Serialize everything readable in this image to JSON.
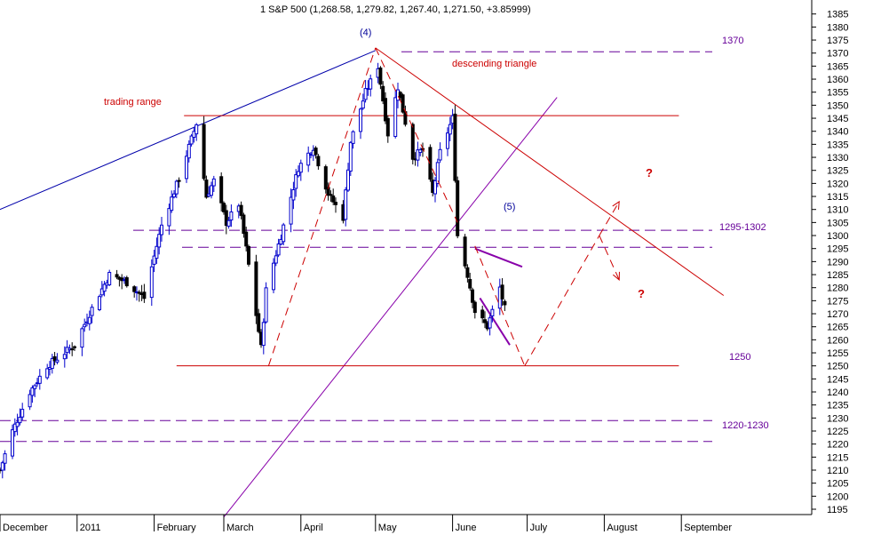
{
  "chart_data": {
    "type": "candlestick",
    "title": "1 S&P 500 (1,268.58, 1,279.82, 1,267.40, 1,271.50, +3.85999)",
    "xlabel": "",
    "ylabel": "",
    "ylim": [
      1191,
      1390
    ],
    "y_ticks": [
      1195,
      1200,
      1205,
      1210,
      1215,
      1220,
      1225,
      1230,
      1235,
      1240,
      1245,
      1250,
      1255,
      1260,
      1265,
      1270,
      1275,
      1280,
      1285,
      1290,
      1295,
      1300,
      1305,
      1310,
      1315,
      1320,
      1325,
      1330,
      1335,
      1340,
      1345,
      1350,
      1355,
      1360,
      1365,
      1370,
      1375,
      1380,
      1385
    ],
    "y_axis_side": "right",
    "grid": false,
    "legend": "none",
    "colors": {
      "up_candle": "#0000cc",
      "down_candle": "#000000",
      "support_resistance": "#cc0000",
      "dashed_levels": "#660099",
      "blue_trendline": "#0000aa",
      "purple_trendline": "#8800aa",
      "question_marks": "#cc0000",
      "wave_labels": "#000099",
      "level_labels": "#660099"
    },
    "x_start": "2010-12-01",
    "x_end": "2011-09-30",
    "months": [
      {
        "label": "December",
        "date": "2010-12-01"
      },
      {
        "label": "2011",
        "date": "2011-01-01"
      },
      {
        "label": "February",
        "date": "2011-02-01"
      },
      {
        "label": "March",
        "date": "2011-03-01"
      },
      {
        "label": "April",
        "date": "2011-04-01"
      },
      {
        "label": "May",
        "date": "2011-05-01"
      },
      {
        "label": "June",
        "date": "2011-06-01"
      },
      {
        "label": "July",
        "date": "2011-07-01"
      },
      {
        "label": "August",
        "date": "2011-08-01"
      },
      {
        "label": "September",
        "date": "2011-09-01"
      }
    ],
    "anchors": [
      [
        "2010-12-01",
        1210
      ],
      [
        "2010-12-06",
        1225
      ],
      [
        "2010-12-13",
        1240
      ],
      [
        "2010-12-20",
        1250
      ],
      [
        "2010-12-31",
        1258
      ],
      [
        "2011-01-07",
        1272
      ],
      [
        "2011-01-14",
        1285
      ],
      [
        "2011-01-21",
        1282
      ],
      [
        "2011-01-28",
        1276
      ],
      [
        "2011-02-04",
        1304
      ],
      [
        "2011-02-11",
        1322
      ],
      [
        "2011-02-18",
        1343
      ],
      [
        "2011-02-22",
        1315
      ],
      [
        "2011-02-25",
        1321
      ],
      [
        "2011-03-02",
        1305
      ],
      [
        "2011-03-07",
        1312
      ],
      [
        "2011-03-10",
        1295
      ],
      [
        "2011-03-16",
        1257
      ],
      [
        "2011-03-18",
        1279
      ],
      [
        "2011-03-24",
        1300
      ],
      [
        "2011-03-31",
        1326
      ],
      [
        "2011-04-06",
        1334
      ],
      [
        "2011-04-12",
        1316
      ],
      [
        "2011-04-18",
        1307
      ],
      [
        "2011-04-21",
        1336
      ],
      [
        "2011-04-27",
        1355
      ],
      [
        "2011-05-02",
        1365
      ],
      [
        "2011-05-06",
        1339
      ],
      [
        "2011-05-10",
        1357
      ],
      [
        "2011-05-16",
        1330
      ],
      [
        "2011-05-20",
        1333
      ],
      [
        "2011-05-24",
        1316
      ],
      [
        "2011-05-27",
        1332
      ],
      [
        "2011-06-01",
        1345
      ],
      [
        "2011-06-03",
        1300
      ],
      [
        "2011-06-07",
        1285
      ],
      [
        "2011-06-10",
        1271
      ],
      [
        "2011-06-15",
        1265
      ],
      [
        "2011-06-17",
        1271
      ],
      [
        "2011-06-20",
        1280
      ],
      [
        "2011-06-22",
        1272
      ]
    ],
    "levels": [
      {
        "label": "1370",
        "value": 1370.5,
        "style": "dashed"
      },
      {
        "label": "",
        "value": 1346,
        "style": "solid",
        "color": "red"
      },
      {
        "label": "",
        "value": 1302,
        "style": "dashed"
      },
      {
        "label": "1295-1302",
        "value": 1295.5,
        "style": "dashed"
      },
      {
        "label": "1250",
        "value": 1250,
        "style": "solid",
        "color": "red"
      },
      {
        "label": "",
        "value": 1229,
        "style": "dashed"
      },
      {
        "label": "1220-1230",
        "value": 1221,
        "style": "dashed"
      }
    ],
    "annotations": {
      "wave4": "(4)",
      "wave5": "(5)",
      "descending_triangle": "descending triangle",
      "trading_range": "trading range",
      "question_top": "?",
      "question_bottom": "?"
    },
    "trendlines": [
      {
        "name": "blue-upper-trendline",
        "color": "blue",
        "style": "solid",
        "points": [
          [
            "2010-12-01",
            1310
          ],
          [
            "2011-05-01",
            1371
          ]
        ]
      },
      {
        "name": "purple-rising-trendline",
        "color": "purple",
        "style": "solid",
        "points": [
          [
            "2011-03-01",
            1192
          ],
          [
            "2011-07-13",
            1353
          ]
        ]
      },
      {
        "name": "descending-resistance",
        "color": "red",
        "style": "solid",
        "points": [
          [
            "2011-05-01",
            1372
          ],
          [
            "2011-09-18",
            1277
          ]
        ]
      },
      {
        "name": "trading-range-line",
        "color": "red",
        "style": "solid",
        "points": [
          [
            "2011-02-13",
            1346
          ],
          [
            "2011-08-31",
            1346
          ]
        ]
      },
      {
        "name": "support-1250",
        "color": "red",
        "style": "solid",
        "points": [
          [
            "2011-02-10",
            1250
          ],
          [
            "2011-08-31",
            1250
          ]
        ]
      },
      {
        "name": "wedge-upper",
        "color": "purple",
        "style": "solid",
        "points": [
          [
            "2011-06-10",
            1295
          ],
          [
            "2011-06-29",
            1288
          ]
        ]
      },
      {
        "name": "wedge-lower",
        "color": "purple",
        "style": "solid",
        "points": [
          [
            "2011-06-12",
            1276
          ],
          [
            "2011-06-24",
            1258
          ]
        ]
      }
    ],
    "dashed_paths": [
      {
        "name": "zigzag-rise-to-wave4",
        "points": [
          [
            "2011-03-19",
            1250
          ],
          [
            "2011-05-01",
            1372
          ]
        ]
      },
      {
        "name": "zigzag-fall-from-wave4",
        "points": [
          [
            "2011-05-01",
            1372
          ],
          [
            "2011-06-03",
            1305
          ]
        ]
      },
      {
        "name": "projection-down",
        "points": [
          [
            "2011-06-10",
            1296
          ],
          [
            "2011-06-30",
            1250
          ]
        ]
      },
      {
        "name": "projection-up",
        "points": [
          [
            "2011-06-30",
            1250
          ],
          [
            "2011-07-30",
            1300
          ]
        ]
      },
      {
        "name": "projection-upper-branch",
        "points": [
          [
            "2011-07-30",
            1300
          ],
          [
            "2011-08-07",
            1313
          ]
        ]
      },
      {
        "name": "projection-lower-branch",
        "points": [
          [
            "2011-07-30",
            1300
          ],
          [
            "2011-08-07",
            1283
          ]
        ]
      }
    ]
  }
}
